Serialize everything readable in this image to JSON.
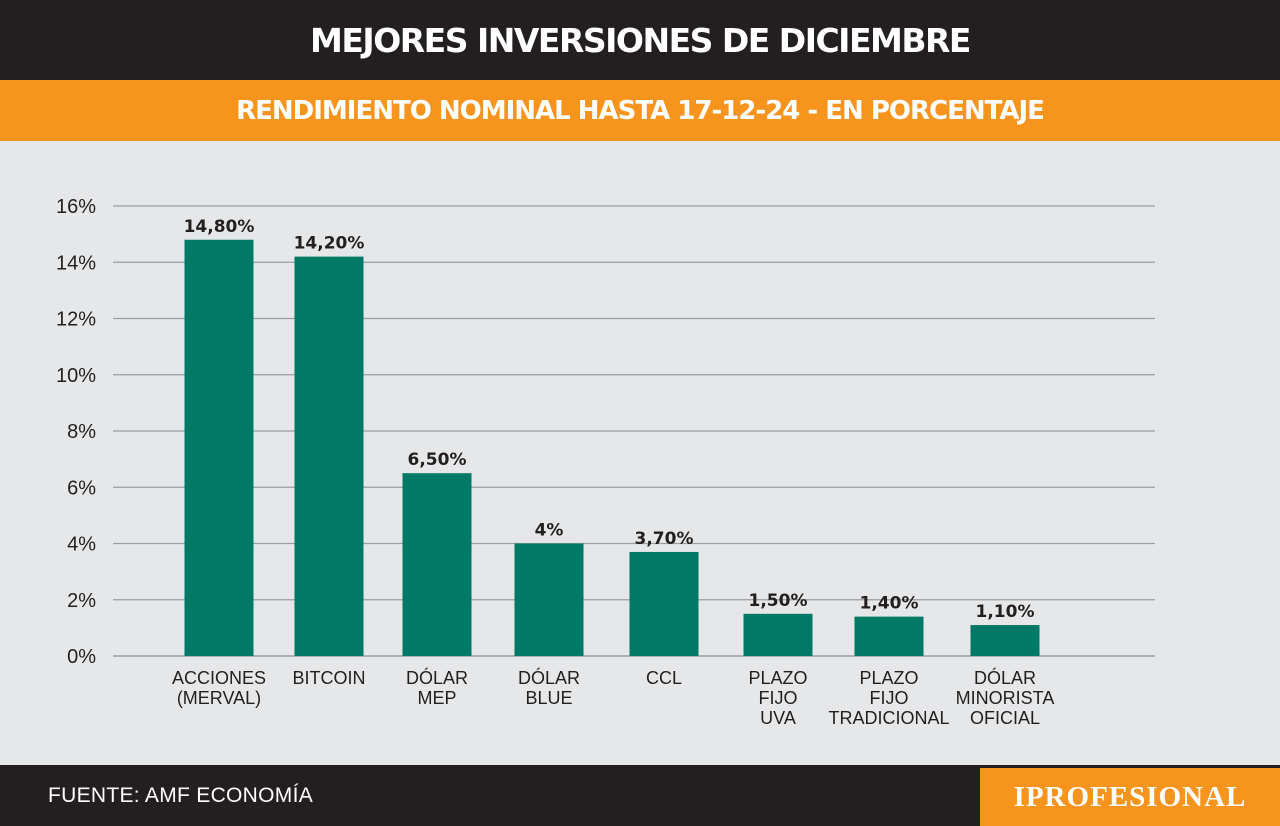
{
  "header": {
    "title": "MEJORES INVERSIONES DE DICIEMBRE",
    "subtitle": "RENDIMIENTO NOMINAL HASTA 17-12-24 - EN PORCENTAJE"
  },
  "footer": {
    "source": "FUENTE: AMF ECONOMÍA",
    "logo": "IPROFESIONAL"
  },
  "colors": {
    "bar": "#007a66",
    "title_bg": "#231f20",
    "accent": "#f7941d",
    "grid": "#9b9da0"
  },
  "chart_data": {
    "type": "bar",
    "title": "MEJORES INVERSIONES DE DICIEMBRE",
    "subtitle": "RENDIMIENTO NOMINAL HASTA 17-12-24 - EN PORCENTAJE",
    "xlabel": "",
    "ylabel": "",
    "ylim": [
      0,
      16
    ],
    "yticks": [
      "0%",
      "2%",
      "4%",
      "6%",
      "8%",
      "10%",
      "12%",
      "14%",
      "16%"
    ],
    "grid": true,
    "categories": [
      [
        "ACCIONES",
        "(MERVAL)"
      ],
      [
        "BITCOIN"
      ],
      [
        "DÓLAR",
        "MEP"
      ],
      [
        "DÓLAR",
        "BLUE"
      ],
      [
        "CCL"
      ],
      [
        "PLAZO",
        "FIJO",
        "UVA"
      ],
      [
        "PLAZO",
        "FIJO",
        "TRADICIONAL"
      ],
      [
        "DÓLAR",
        "MINORISTA",
        "OFICIAL"
      ]
    ],
    "values": [
      14.8,
      14.2,
      6.5,
      4,
      3.7,
      1.5,
      1.4,
      1.1
    ],
    "value_labels": [
      "14,80%",
      "14,20%",
      "6,50%",
      "4%",
      "3,70%",
      "1,50%",
      "1,40%",
      "1,10%"
    ]
  }
}
